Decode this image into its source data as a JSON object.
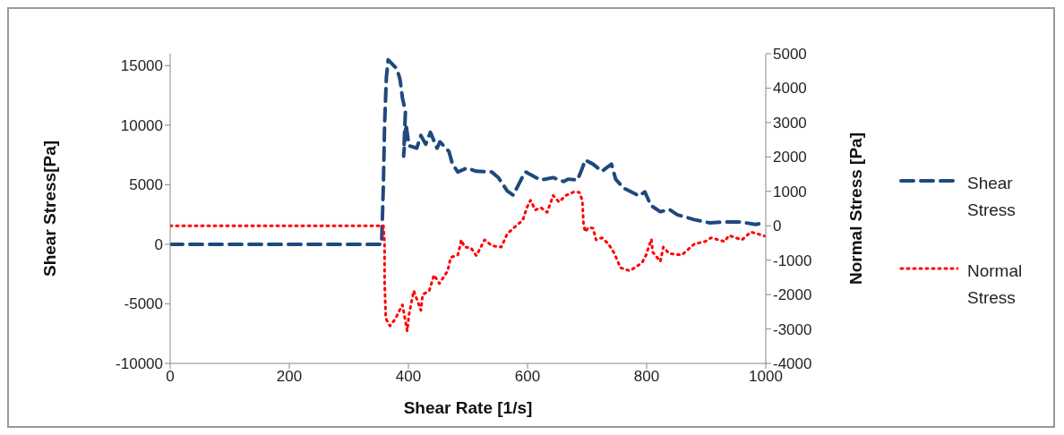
{
  "chart_data": {
    "type": "line",
    "xlabel": "Shear Rate [1/s]",
    "ylabel": "Shear Stress[Pa]",
    "y2label": "Normal Stress [Pa]",
    "xlim": [
      0,
      1000
    ],
    "xticks": [
      0,
      200,
      400,
      600,
      800,
      1000
    ],
    "ylim": [
      -10000,
      16000
    ],
    "yticks": [
      -10000,
      -5000,
      0,
      5000,
      10000,
      15000
    ],
    "y2lim": [
      -4000,
      5000
    ],
    "y2ticks": [
      -4000,
      -3000,
      -2000,
      -1000,
      0,
      1000,
      2000,
      3000,
      4000,
      5000
    ],
    "grid": false,
    "legend": "right",
    "marker": "none",
    "series": [
      {
        "name": "Shear Stress",
        "color": "#1f497d",
        "line_style": "dashed",
        "x": [
          0,
          100,
          200,
          300,
          355,
          358,
          360,
          363,
          366,
          381,
          386,
          390,
          395,
          392,
          396,
          401,
          414,
          421,
          429,
          437,
          448,
          453,
          468,
          474,
          483,
          498,
          514,
          540,
          551,
          566,
          576,
          591,
          597,
          602,
          622,
          643,
          661,
          668,
          684,
          691,
          697,
          710,
          725,
          741,
          748,
          761,
          787,
          797,
          807,
          823,
          838,
          852,
          880,
          906,
          931,
          957,
          983,
          998
        ],
        "values": [
          0,
          0,
          0,
          0,
          0,
          5000,
          10000,
          14000,
          15490,
          14710,
          13820,
          12270,
          11150,
          7400,
          10070,
          8270,
          8070,
          9130,
          8400,
          9400,
          8070,
          8600,
          7800,
          6730,
          6070,
          6400,
          6130,
          6070,
          5600,
          4470,
          4130,
          5600,
          6070,
          5930,
          5400,
          5600,
          5270,
          5470,
          5400,
          6270,
          7070,
          6730,
          6130,
          6730,
          5470,
          4730,
          4070,
          4400,
          3270,
          2730,
          2930,
          2470,
          2070,
          1800,
          1870,
          1870,
          1670,
          1800
        ]
      },
      {
        "name": "Normal Stress",
        "color": "#ff0000",
        "line_style": "dotted",
        "axis": "y2",
        "x": [
          0,
          100,
          200,
          300,
          358,
          360,
          360,
          362,
          369,
          378,
          383,
          390,
          398,
          401,
          409,
          421,
          424,
          435,
          443,
          452,
          466,
          471,
          483,
          489,
          494,
          505,
          514,
          528,
          540,
          556,
          566,
          581,
          592,
          599,
          605,
          613,
          622,
          633,
          643,
          653,
          664,
          679,
          687,
          692,
          694,
          697,
          702,
          710,
          715,
          725,
          736,
          746,
          756,
          772,
          792,
          799,
          808,
          810,
          823,
          828,
          838,
          859,
          880,
          898,
          908,
          931,
          938,
          960,
          975,
          985,
          998
        ],
        "values": [
          0,
          0,
          0,
          0,
          0,
          -530,
          -1600,
          -2690,
          -2910,
          -2710,
          -2530,
          -2300,
          -3060,
          -2580,
          -1890,
          -2460,
          -2000,
          -1890,
          -1430,
          -1680,
          -1310,
          -920,
          -850,
          -410,
          -620,
          -640,
          -870,
          -410,
          -580,
          -620,
          -230,
          0,
          160,
          530,
          740,
          460,
          530,
          390,
          880,
          690,
          880,
          990,
          970,
          740,
          50,
          -180,
          -50,
          -70,
          -410,
          -350,
          -530,
          -810,
          -1220,
          -1310,
          -1080,
          -850,
          -390,
          -760,
          -1040,
          -620,
          -810,
          -850,
          -530,
          -460,
          -350,
          -460,
          -280,
          -410,
          -180,
          -230,
          -300
        ]
      }
    ]
  }
}
